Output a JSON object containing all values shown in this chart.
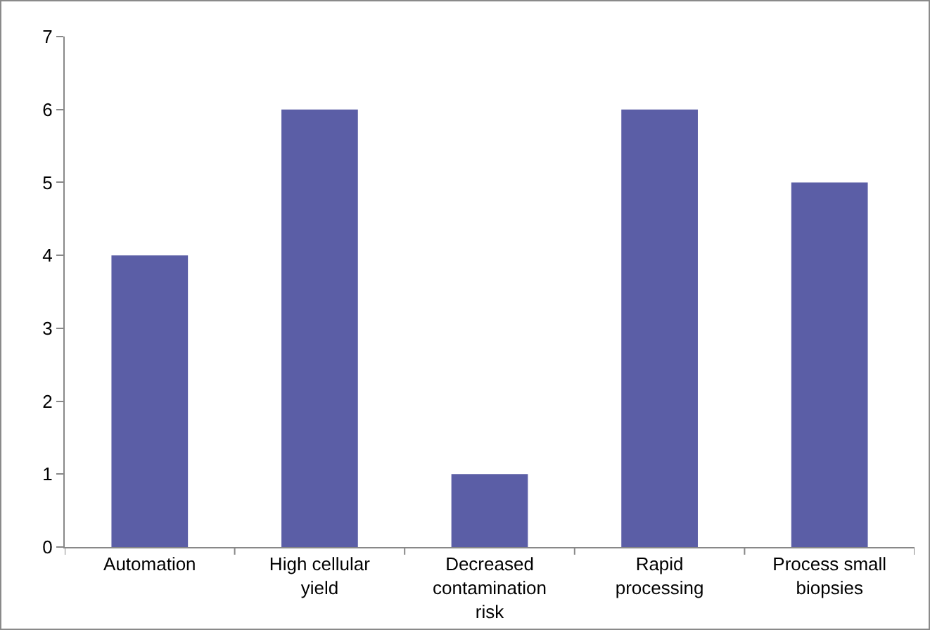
{
  "chart_data": {
    "type": "bar",
    "categories": [
      "Automation",
      "High cellular yield",
      "Decreased contamination risk",
      "Rapid processing",
      "Process small biopsies"
    ],
    "values": [
      4,
      6,
      1,
      6,
      5
    ],
    "color": "#5b5ea6",
    "ylim": [
      0,
      7
    ],
    "yticks": [
      0,
      1,
      2,
      3,
      4,
      5,
      6,
      7
    ],
    "grid": false
  }
}
